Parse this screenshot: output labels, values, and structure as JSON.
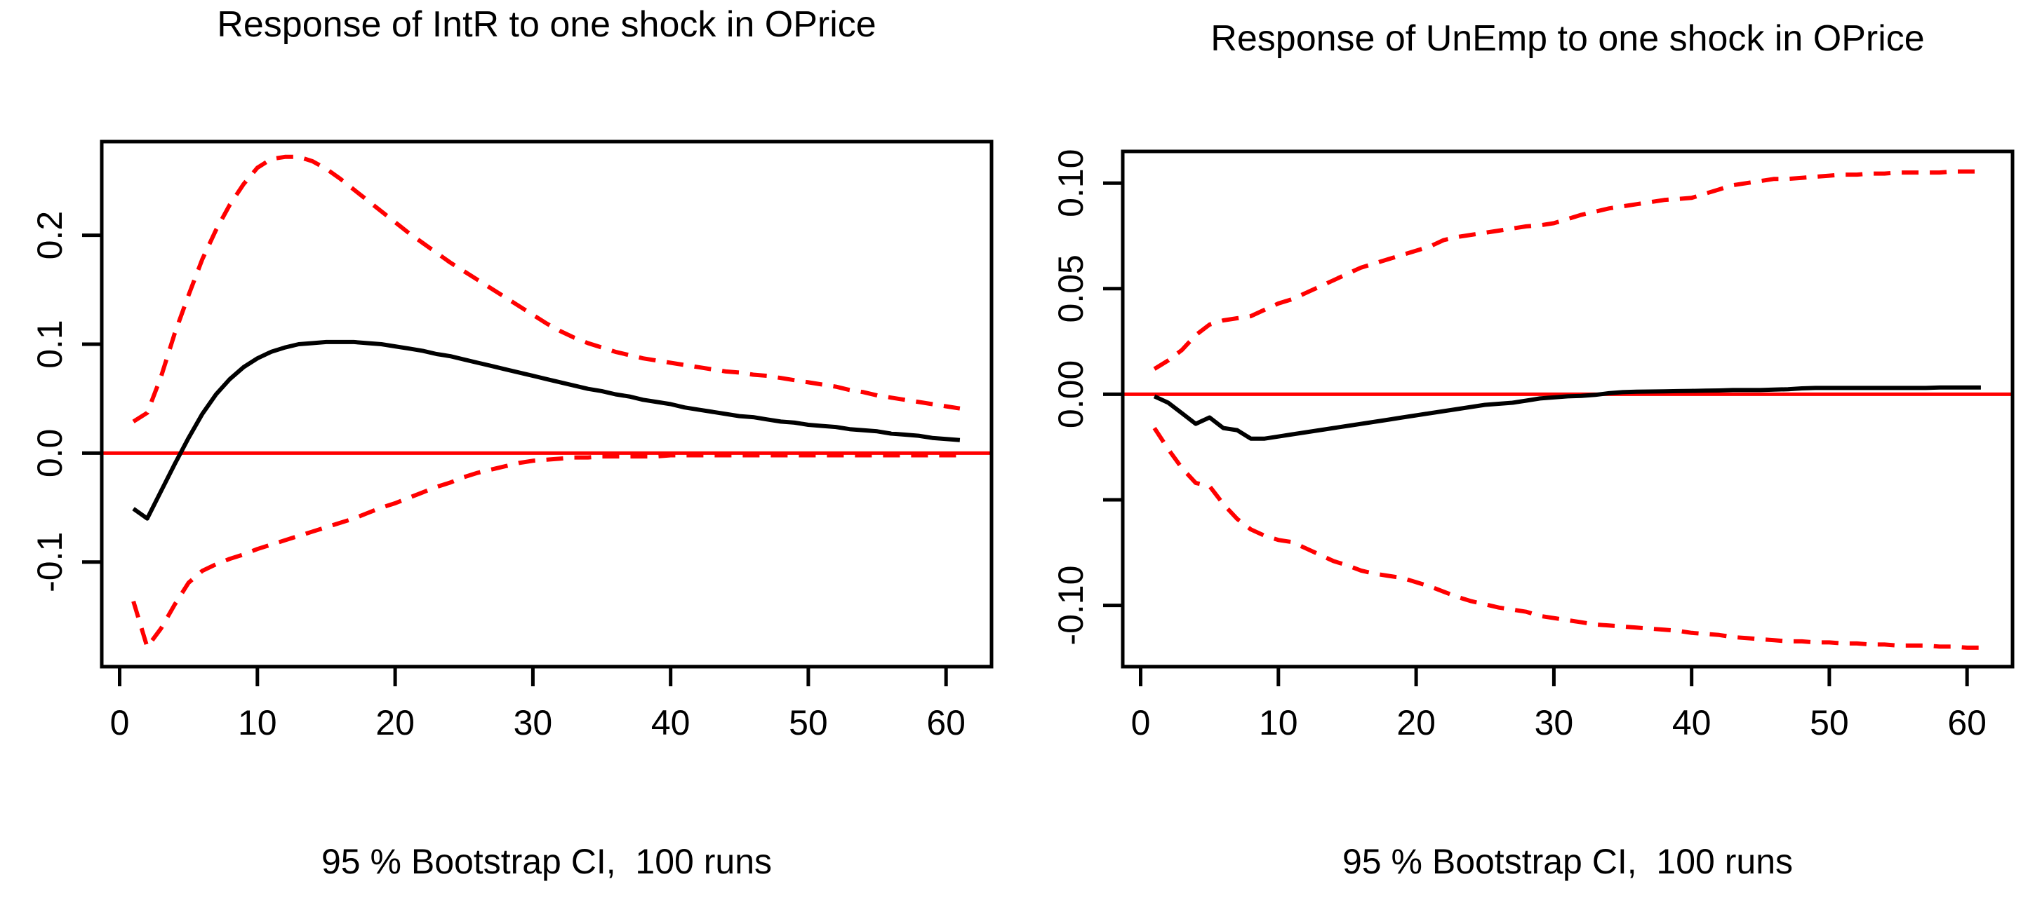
{
  "page": {
    "background": "#ffffff",
    "text_color": "#000000"
  },
  "chart_data": [
    {
      "type": "line",
      "title": "Response of IntR to one shock in OPrice",
      "caption": "95 % Bootstrap CI,  100 runs",
      "xlabel": "",
      "ylabel": "",
      "x_range": {
        "start": 1,
        "end": 61,
        "step": 1
      },
      "xlim": [
        -1.3,
        63.3
      ],
      "ylim": [
        -0.196,
        0.286
      ],
      "x_ticks": {
        "values": [
          0,
          10,
          20,
          30,
          40,
          50,
          60
        ],
        "labels": [
          "0",
          "10",
          "20",
          "30",
          "40",
          "50",
          "60"
        ]
      },
      "y_ticks": {
        "values": [
          0.2,
          0.1,
          0.0,
          -0.1
        ],
        "labels": [
          "0.2",
          "0.1",
          "0.0",
          "-0.1"
        ]
      },
      "grid": false,
      "legend": "none",
      "colors": {
        "irf": "#000000",
        "ci": "#ff0000",
        "zero_line": "#ff0000"
      },
      "zero_line": 0,
      "series": [
        {
          "name": "irf",
          "label": "impulse response of IntR",
          "color": "#000000",
          "style": "solid",
          "values": [
            -0.051,
            -0.06,
            -0.035,
            -0.01,
            0.014,
            0.036,
            0.054,
            0.068,
            0.079,
            0.087,
            0.093,
            0.097,
            0.1,
            0.101,
            0.102,
            0.102,
            0.102,
            0.101,
            0.1,
            0.098,
            0.096,
            0.094,
            0.091,
            0.089,
            0.086,
            0.083,
            0.08,
            0.077,
            0.074,
            0.071,
            0.068,
            0.065,
            0.062,
            0.059,
            0.057,
            0.054,
            0.052,
            0.049,
            0.047,
            0.045,
            0.042,
            0.04,
            0.038,
            0.036,
            0.034,
            0.033,
            0.031,
            0.029,
            0.028,
            0.026,
            0.025,
            0.024,
            0.022,
            0.021,
            0.02,
            0.018,
            0.017,
            0.016,
            0.014,
            0.013,
            0.012
          ]
        },
        {
          "name": "ci-upper",
          "label": "95% bootstrap CI upper bound",
          "color": "#ff0000",
          "style": "dashed",
          "values": [
            0.029,
            0.037,
            0.07,
            0.11,
            0.145,
            0.178,
            0.205,
            0.228,
            0.247,
            0.262,
            0.27,
            0.272,
            0.272,
            0.268,
            0.261,
            0.252,
            0.242,
            0.232,
            0.222,
            0.212,
            0.202,
            0.193,
            0.184,
            0.175,
            0.167,
            0.159,
            0.151,
            0.143,
            0.135,
            0.127,
            0.119,
            0.112,
            0.106,
            0.101,
            0.097,
            0.093,
            0.09,
            0.087,
            0.085,
            0.083,
            0.081,
            0.079,
            0.077,
            0.075,
            0.074,
            0.072,
            0.071,
            0.069,
            0.067,
            0.065,
            0.063,
            0.061,
            0.058,
            0.056,
            0.053,
            0.051,
            0.049,
            0.047,
            0.045,
            0.043,
            0.041
          ]
        },
        {
          "name": "ci-lower",
          "label": "95% bootstrap CI lower bound",
          "color": "#ff0000",
          "style": "dashed",
          "values": [
            -0.136,
            -0.178,
            -0.161,
            -0.139,
            -0.119,
            -0.108,
            -0.102,
            -0.097,
            -0.093,
            -0.088,
            -0.084,
            -0.08,
            -0.076,
            -0.072,
            -0.068,
            -0.064,
            -0.06,
            -0.055,
            -0.05,
            -0.046,
            -0.041,
            -0.036,
            -0.031,
            -0.027,
            -0.022,
            -0.018,
            -0.015,
            -0.012,
            -0.009,
            -0.007,
            -0.006,
            -0.005,
            -0.004,
            -0.004,
            -0.003,
            -0.003,
            -0.003,
            -0.003,
            -0.003,
            -0.002,
            -0.002,
            -0.002,
            -0.002,
            -0.002,
            -0.002,
            -0.002,
            -0.002,
            -0.002,
            -0.002,
            -0.002,
            -0.002,
            -0.002,
            -0.002,
            -0.002,
            -0.002,
            -0.002,
            -0.002,
            -0.002,
            -0.002,
            -0.002,
            -0.002
          ]
        }
      ]
    },
    {
      "type": "line",
      "title": "Response of UnEmp to one shock in OPrice",
      "caption": "95 % Bootstrap CI,  100 runs",
      "xlabel": "",
      "ylabel": "",
      "x_range": {
        "start": 1,
        "end": 61,
        "step": 1
      },
      "xlim": [
        -1.3,
        63.3
      ],
      "ylim": [
        -0.129,
        0.115
      ],
      "x_ticks": {
        "values": [
          0,
          10,
          20,
          30,
          40,
          50,
          60
        ],
        "labels": [
          "0",
          "10",
          "20",
          "30",
          "40",
          "50",
          "60"
        ]
      },
      "y_ticks": {
        "values": [
          0.1,
          0.05,
          0.0,
          -0.05,
          -0.1
        ],
        "labels": [
          "0.10",
          "0.05",
          "0.00",
          "",
          "-0.10"
        ]
      },
      "grid": false,
      "legend": "none",
      "colors": {
        "irf": "#000000",
        "ci": "#ff0000",
        "zero_line": "#ff0000"
      },
      "zero_line": 0,
      "series": [
        {
          "name": "irf",
          "label": "impulse response of UnEmp",
          "color": "#000000",
          "style": "solid",
          "values": [
            -0.001,
            -0.004,
            -0.009,
            -0.014,
            -0.011,
            -0.016,
            -0.017,
            -0.021,
            -0.021,
            -0.02,
            -0.019,
            -0.018,
            -0.017,
            -0.016,
            -0.015,
            -0.014,
            -0.013,
            -0.012,
            -0.011,
            -0.01,
            -0.009,
            -0.008,
            -0.007,
            -0.006,
            -0.005,
            -0.0045,
            -0.004,
            -0.003,
            -0.002,
            -0.0015,
            -0.001,
            -0.0008,
            -0.0003,
            0.0005,
            0.001,
            0.0012,
            0.0013,
            0.0014,
            0.0015,
            0.0016,
            0.0017,
            0.0018,
            0.002,
            0.002,
            0.002,
            0.0022,
            0.0024,
            0.0028,
            0.003,
            0.003,
            0.003,
            0.003,
            0.003,
            0.003,
            0.003,
            0.003,
            0.003,
            0.0032,
            0.0032,
            0.0032,
            0.0032
          ]
        },
        {
          "name": "ci-upper",
          "label": "95% bootstrap CI upper bound",
          "color": "#ff0000",
          "style": "dashed",
          "values": [
            0.012,
            0.016,
            0.021,
            0.028,
            0.033,
            0.035,
            0.036,
            0.037,
            0.04,
            0.043,
            0.045,
            0.048,
            0.051,
            0.054,
            0.057,
            0.06,
            0.062,
            0.064,
            0.066,
            0.068,
            0.07,
            0.073,
            0.0745,
            0.0755,
            0.0765,
            0.0775,
            0.0785,
            0.0795,
            0.08,
            0.081,
            0.083,
            0.085,
            0.0865,
            0.088,
            0.089,
            0.09,
            0.091,
            0.092,
            0.0925,
            0.093,
            0.095,
            0.097,
            0.099,
            0.1,
            0.101,
            0.102,
            0.102,
            0.1025,
            0.103,
            0.1035,
            0.104,
            0.104,
            0.1045,
            0.1045,
            0.105,
            0.105,
            0.105,
            0.105,
            0.1055,
            0.1055,
            0.1055
          ]
        },
        {
          "name": "ci-lower",
          "label": "95% bootstrap CI lower bound",
          "color": "#ff0000",
          "style": "dashed",
          "values": [
            -0.016,
            -0.026,
            -0.035,
            -0.042,
            -0.0435,
            -0.052,
            -0.059,
            -0.064,
            -0.067,
            -0.069,
            -0.07,
            -0.073,
            -0.076,
            -0.079,
            -0.081,
            -0.0835,
            -0.085,
            -0.086,
            -0.087,
            -0.089,
            -0.091,
            -0.0935,
            -0.096,
            -0.098,
            -0.0995,
            -0.101,
            -0.102,
            -0.103,
            -0.105,
            -0.106,
            -0.107,
            -0.108,
            -0.109,
            -0.1095,
            -0.11,
            -0.1105,
            -0.111,
            -0.1115,
            -0.112,
            -0.113,
            -0.1135,
            -0.114,
            -0.115,
            -0.1155,
            -0.116,
            -0.1165,
            -0.117,
            -0.117,
            -0.1175,
            -0.1175,
            -0.118,
            -0.118,
            -0.1185,
            -0.1185,
            -0.119,
            -0.119,
            -0.119,
            -0.1195,
            -0.1195,
            -0.12,
            -0.12
          ]
        }
      ]
    }
  ]
}
